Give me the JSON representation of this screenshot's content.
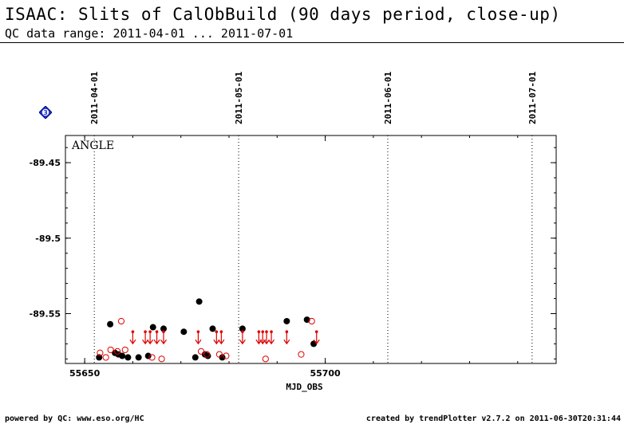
{
  "header": {
    "title": "ISAAC: Slits of CalObBuild (90 days period, close-up)",
    "subtitle": "QC data range: 2011-04-01 ... 2011-07-01"
  },
  "footer": {
    "left": "powered by QC: www.eso.org/HC",
    "right": "created by trendPlotter v2.7.2 on 2011-06-30T20:31:44"
  },
  "badge": {
    "label": "3",
    "color": "#1a2ee0"
  },
  "chart_data": {
    "type": "scatter",
    "panel_label": "ANGLE",
    "xlabel": "MJD_OBS",
    "ylabel": "",
    "xlim": [
      55646,
      55748
    ],
    "ylim": [
      -89.583,
      -89.432
    ],
    "xticks": [
      55650,
      55700
    ],
    "yticks": [
      -89.45,
      -89.5,
      -89.55
    ],
    "date_markers": [
      {
        "label": "2011-04-01",
        "x": 55652
      },
      {
        "label": "2011-05-01",
        "x": 55682
      },
      {
        "label": "2011-06-01",
        "x": 55713
      },
      {
        "label": "2011-07-01",
        "x": 55743
      }
    ],
    "colors": {
      "series_1": "#000000",
      "series_2": "#e00000"
    },
    "series": [
      {
        "marker": "filled-circle",
        "color": "#000000",
        "points": [
          {
            "x": 55653.0,
            "y": -89.579
          },
          {
            "x": 55655.3,
            "y": -89.557
          },
          {
            "x": 55656.3,
            "y": -89.576
          },
          {
            "x": 55657.0,
            "y": -89.577
          },
          {
            "x": 55657.8,
            "y": -89.578
          },
          {
            "x": 55659.0,
            "y": -89.579
          },
          {
            "x": 55661.2,
            "y": -89.579
          },
          {
            "x": 55663.2,
            "y": -89.578
          },
          {
            "x": 55664.2,
            "y": -89.559
          },
          {
            "x": 55666.4,
            "y": -89.56
          },
          {
            "x": 55670.6,
            "y": -89.562
          },
          {
            "x": 55673.0,
            "y": -89.579
          },
          {
            "x": 55673.8,
            "y": -89.542
          },
          {
            "x": 55675.0,
            "y": -89.577
          },
          {
            "x": 55675.6,
            "y": -89.578
          },
          {
            "x": 55676.6,
            "y": -89.56
          },
          {
            "x": 55678.6,
            "y": -89.579
          },
          {
            "x": 55682.8,
            "y": -89.56
          },
          {
            "x": 55692.0,
            "y": -89.555
          },
          {
            "x": 55696.2,
            "y": -89.554
          },
          {
            "x": 55697.6,
            "y": -89.57
          }
        ]
      },
      {
        "marker": "open-circle",
        "color": "#e00000",
        "points": [
          {
            "x": 55653.2,
            "y": -89.576
          },
          {
            "x": 55654.4,
            "y": -89.579
          },
          {
            "x": 55655.4,
            "y": -89.574
          },
          {
            "x": 55656.8,
            "y": -89.575
          },
          {
            "x": 55657.6,
            "y": -89.555
          },
          {
            "x": 55658.4,
            "y": -89.574
          },
          {
            "x": 55664.0,
            "y": -89.579
          },
          {
            "x": 55666.0,
            "y": -89.58
          },
          {
            "x": 55674.2,
            "y": -89.575
          },
          {
            "x": 55675.4,
            "y": -89.577
          },
          {
            "x": 55678.0,
            "y": -89.577
          },
          {
            "x": 55679.4,
            "y": -89.578
          },
          {
            "x": 55687.6,
            "y": -89.58
          },
          {
            "x": 55695.0,
            "y": -89.577
          },
          {
            "x": 55697.2,
            "y": -89.555
          }
        ]
      },
      {
        "marker": "limit-arrow-down",
        "color": "#e00000",
        "points": [
          {
            "x": 55660.0,
            "y": -89.562
          },
          {
            "x": 55662.6,
            "y": -89.562
          },
          {
            "x": 55663.6,
            "y": -89.562
          },
          {
            "x": 55665.0,
            "y": -89.562
          },
          {
            "x": 55666.4,
            "y": -89.562
          },
          {
            "x": 55673.6,
            "y": -89.562
          },
          {
            "x": 55677.4,
            "y": -89.562
          },
          {
            "x": 55678.4,
            "y": -89.562
          },
          {
            "x": 55682.8,
            "y": -89.562
          },
          {
            "x": 55686.2,
            "y": -89.562
          },
          {
            "x": 55687.0,
            "y": -89.562
          },
          {
            "x": 55687.8,
            "y": -89.562
          },
          {
            "x": 55688.8,
            "y": -89.562
          },
          {
            "x": 55692.0,
            "y": -89.562
          },
          {
            "x": 55698.2,
            "y": -89.562
          }
        ]
      }
    ]
  }
}
